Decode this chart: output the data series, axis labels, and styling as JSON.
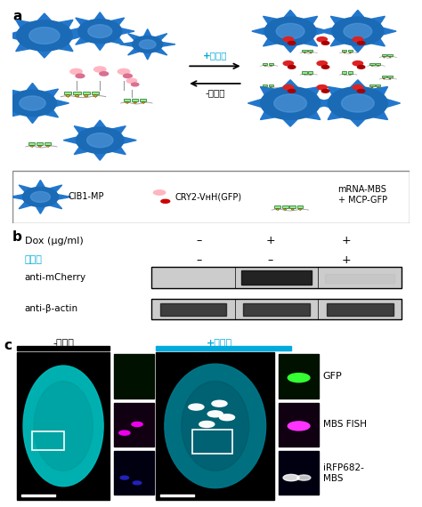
{
  "panel_a_label": "a",
  "panel_b_label": "b",
  "panel_c_label": "c",
  "bg_color": "#ffffff",
  "dox_label": "Dox (μg/ml)",
  "cyan_light_label": "청색광",
  "anti_mcherry_label": "anti-mCherry",
  "anti_bactin_label": "anti-β-actin",
  "legend_cib1": "CIB1-MP",
  "legend_cry2": "CRY2-VʜH(GFP)",
  "legend_mrna": "mRNA-MBS\n+ MCP-GFP",
  "arrow_plus": "+청색광",
  "arrow_minus": "-청색광",
  "c_minus_label": "-청색광",
  "c_plus_label": "+청색광",
  "gfp_label": "GFP",
  "mbs_fish_label": "MBS FISH",
  "irfp_label": "iRFP682-\nMBS",
  "cyan_color": "#00aadd",
  "sphere_blue": "#1a6ab5",
  "sphere_light": "#5599dd",
  "spike_color": "#2277cc",
  "green_box": "#44aa44",
  "light_green": "#90EE90",
  "orange_circ": "#FFA500",
  "pink_cry2": "#FFB6C1",
  "dark_pink": "#D87093",
  "red_cry2": "#DD2222",
  "gray_stem": "#999999"
}
